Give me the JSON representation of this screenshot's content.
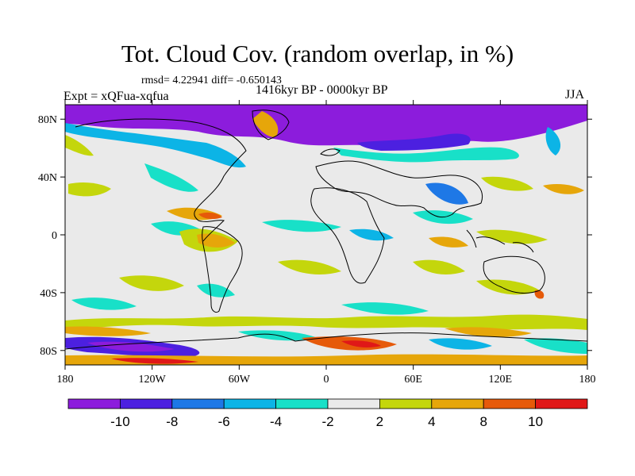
{
  "title": "Tot. Cloud Cov. (random overlap, in %)",
  "stats": "rmsd= 4.22941 diff= -0.650143",
  "period": "1416kyr BP - 0000kyr BP",
  "experiment": "Expt = xQFua-xqfua",
  "season": "JJA",
  "x_ticks": [
    "180",
    "120W",
    "60W",
    "0",
    "60E",
    "120E",
    "180"
  ],
  "y_ticks": [
    "80N",
    "40N",
    "0",
    "40S",
    "80S"
  ],
  "colorbar": {
    "labels": [
      "-10",
      "-8",
      "-6",
      "-4",
      "-2",
      "2",
      "4",
      "8",
      "10"
    ],
    "colors": [
      "#8c1cdc",
      "#4c20e0",
      "#1e78e6",
      "#0cb4e6",
      "#18e0c8",
      "#eaeaea",
      "#c4d60c",
      "#e6a60a",
      "#e65a0a",
      "#e01818"
    ]
  }
}
